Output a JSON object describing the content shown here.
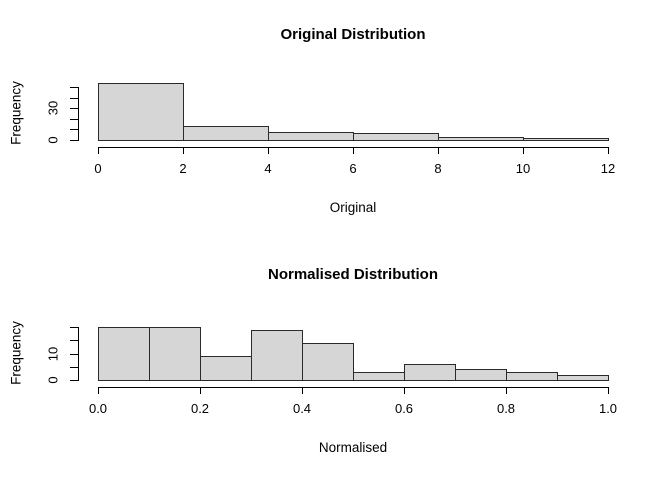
{
  "page": {
    "background_color": "#ffffff",
    "text_color": "#000000"
  },
  "colors": {
    "bar_fill": "#d6d6d6",
    "bar_border": "#2b2b2b",
    "axis": "#000000"
  },
  "chart_data": [
    {
      "type": "bar",
      "subtype": "histogram",
      "title": "Original Distribution",
      "xlabel": "Original",
      "ylabel": "Frequency",
      "xlim": [
        0,
        12
      ],
      "ylim": [
        0,
        54
      ],
      "bin_edges": [
        0,
        2,
        4,
        6,
        8,
        10,
        12
      ],
      "values": [
        54,
        13,
        8,
        7,
        3,
        2
      ],
      "x_tick_labels": [
        "0",
        "2",
        "4",
        "6",
        "8",
        "10",
        "12"
      ],
      "y_ticks": [
        0,
        10,
        20,
        30,
        40,
        50
      ],
      "y_tick_labels_shown": [
        "0",
        "30"
      ],
      "grid": false,
      "legend": false
    },
    {
      "type": "bar",
      "subtype": "histogram",
      "title": "Normalised Distribution",
      "xlabel": "Normalised",
      "ylabel": "Frequency",
      "xlim": [
        0,
        1
      ],
      "ylim": [
        0,
        20
      ],
      "bin_edges": [
        0,
        0.1,
        0.2,
        0.3,
        0.4,
        0.5,
        0.6,
        0.7,
        0.8,
        0.9,
        1.0
      ],
      "values": [
        20,
        20,
        9,
        19,
        14,
        3,
        6,
        4,
        3,
        2
      ],
      "x_tick_labels": [
        "0.0",
        "0.2",
        "0.4",
        "0.6",
        "0.8",
        "1.0"
      ],
      "y_ticks": [
        0,
        5,
        10,
        15,
        20
      ],
      "y_tick_labels_shown": [
        "0",
        "10"
      ],
      "grid": false,
      "legend": false
    }
  ]
}
